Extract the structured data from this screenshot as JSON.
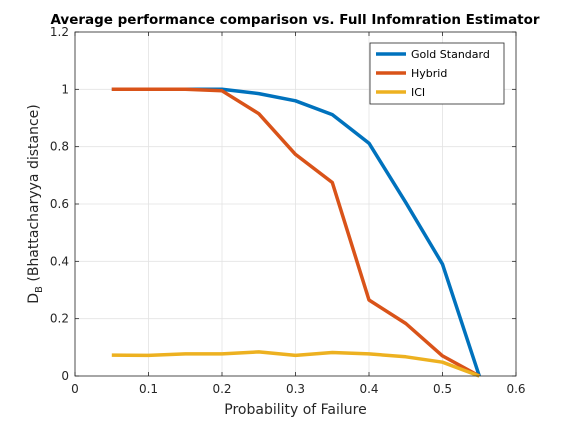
{
  "chart_data": {
    "type": "line",
    "title": "Average performance comparison vs. Full Infomration Estimator",
    "xlabel": "Probability of Failure",
    "ylabel_main": "D",
    "ylabel_sub": "B",
    "ylabel_rest": " (Bhattacharyya distance)",
    "xlim": [
      0,
      0.6
    ],
    "ylim": [
      0,
      1.2
    ],
    "xticks": [
      0,
      0.1,
      0.2,
      0.3,
      0.4,
      0.5,
      0.6
    ],
    "xtick_labels": [
      "0",
      "0.1",
      "0.2",
      "0.3",
      "0.4",
      "0.5",
      "0.6"
    ],
    "yticks": [
      0,
      0.2,
      0.4,
      0.6,
      0.8,
      1.0,
      1.2
    ],
    "ytick_labels": [
      "0",
      "0.2",
      "0.4",
      "0.6",
      "0.8",
      "1",
      "1.2"
    ],
    "grid": true,
    "legend_position": "top-right",
    "series": [
      {
        "name": "Gold Standard",
        "color": "#0072BD",
        "x": [
          0.05,
          0.1,
          0.15,
          0.2,
          0.25,
          0.3,
          0.35,
          0.4,
          0.45,
          0.5,
          0.55
        ],
        "y": [
          1.0,
          1.0,
          1.0,
          1.0,
          0.985,
          0.96,
          0.912,
          0.812,
          0.605,
          0.39,
          0.0
        ]
      },
      {
        "name": "Hybrid",
        "color": "#D95319",
        "x": [
          0.05,
          0.1,
          0.15,
          0.2,
          0.25,
          0.3,
          0.35,
          0.4,
          0.45,
          0.5,
          0.55
        ],
        "y": [
          1.0,
          1.0,
          1.0,
          0.995,
          0.915,
          0.773,
          0.675,
          0.265,
          0.183,
          0.07,
          0.0
        ]
      },
      {
        "name": "ICI",
        "color": "#EDB120",
        "x": [
          0.05,
          0.1,
          0.15,
          0.2,
          0.25,
          0.3,
          0.35,
          0.4,
          0.45,
          0.5,
          0.55
        ],
        "y": [
          0.073,
          0.072,
          0.077,
          0.077,
          0.084,
          0.072,
          0.082,
          0.077,
          0.067,
          0.048,
          0.0
        ]
      }
    ]
  }
}
